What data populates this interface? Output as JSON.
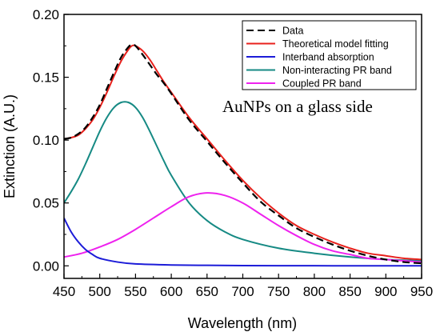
{
  "chart_data": {
    "type": "line",
    "title": "",
    "xlabel": "Wavelength (nm)",
    "ylabel": "Extinction (A.U.)",
    "xlim": [
      450,
      950
    ],
    "ylim": [
      -0.01,
      0.2
    ],
    "x_ticks": [
      450,
      500,
      550,
      600,
      650,
      700,
      750,
      800,
      850,
      900,
      950
    ],
    "y_ticks": [
      0.0,
      0.05,
      0.1,
      0.15,
      0.2
    ],
    "x_tick_labels": [
      "450",
      "500",
      "550",
      "600",
      "650",
      "700",
      "750",
      "800",
      "850",
      "900",
      "950"
    ],
    "y_tick_labels": [
      "0.00",
      "0.05",
      "0.10",
      "0.15",
      "0.20"
    ],
    "grid": false,
    "legend_position": "top-right",
    "annotation": {
      "text": "AuNPs on a glass side",
      "color": "#1a1ae6"
    },
    "series": [
      {
        "name": "Data",
        "color": "#000000",
        "style": "dashed",
        "x": [
          450,
          460,
          470,
          480,
          490,
          500,
          510,
          520,
          530,
          540,
          545,
          550,
          560,
          570,
          580,
          590,
          600,
          625,
          650,
          675,
          700,
          725,
          750,
          775,
          800,
          825,
          850,
          875,
          900,
          925,
          950
        ],
        "y": [
          0.101,
          0.102,
          0.105,
          0.11,
          0.118,
          0.128,
          0.141,
          0.154,
          0.166,
          0.174,
          0.176,
          0.175,
          0.168,
          0.16,
          0.152,
          0.145,
          0.137,
          0.116,
          0.099,
          0.082,
          0.066,
          0.051,
          0.04,
          0.03,
          0.023,
          0.017,
          0.012,
          0.008,
          0.005,
          0.003,
          0.002
        ]
      },
      {
        "name": "Theoretical model fitting",
        "color": "#e8211c",
        "style": "solid",
        "x": [
          450,
          460,
          470,
          480,
          490,
          500,
          510,
          520,
          530,
          540,
          545,
          550,
          560,
          570,
          580,
          590,
          600,
          625,
          650,
          675,
          700,
          725,
          750,
          775,
          800,
          825,
          850,
          875,
          900,
          925,
          950
        ],
        "y": [
          0.101,
          0.102,
          0.104,
          0.109,
          0.116,
          0.126,
          0.138,
          0.151,
          0.163,
          0.172,
          0.175,
          0.175,
          0.171,
          0.164,
          0.155,
          0.146,
          0.138,
          0.118,
          0.101,
          0.084,
          0.068,
          0.054,
          0.042,
          0.032,
          0.025,
          0.019,
          0.014,
          0.01,
          0.008,
          0.006,
          0.005
        ]
      },
      {
        "name": "Interband absorption",
        "color": "#1c1cd8",
        "style": "solid",
        "x": [
          450,
          460,
          470,
          480,
          490,
          500,
          525,
          550,
          600,
          650,
          700,
          750,
          800,
          850,
          900,
          950
        ],
        "y": [
          0.038,
          0.027,
          0.019,
          0.013,
          0.009,
          0.006,
          0.003,
          0.0015,
          0.0007,
          0.0004,
          0.0002,
          0.0001,
          0.0001,
          0.0,
          0.0,
          0.0
        ]
      },
      {
        "name": "Non-interacting PR band",
        "color": "#168a84",
        "style": "solid",
        "x": [
          450,
          460,
          470,
          480,
          490,
          500,
          510,
          520,
          530,
          540,
          550,
          560,
          570,
          580,
          590,
          600,
          625,
          650,
          675,
          700,
          750,
          800,
          850,
          900,
          950
        ],
        "y": [
          0.05,
          0.059,
          0.069,
          0.081,
          0.094,
          0.107,
          0.118,
          0.126,
          0.13,
          0.13,
          0.126,
          0.118,
          0.107,
          0.095,
          0.083,
          0.072,
          0.05,
          0.036,
          0.027,
          0.021,
          0.014,
          0.01,
          0.007,
          0.005,
          0.004
        ]
      },
      {
        "name": "Coupled PR band",
        "color": "#ee22ee",
        "style": "solid",
        "x": [
          450,
          475,
          500,
          525,
          550,
          575,
          600,
          625,
          650,
          675,
          700,
          725,
          750,
          775,
          800,
          825,
          850,
          875,
          900,
          925,
          950
        ],
        "y": [
          0.007,
          0.01,
          0.015,
          0.021,
          0.029,
          0.038,
          0.047,
          0.055,
          0.058,
          0.056,
          0.05,
          0.041,
          0.032,
          0.024,
          0.017,
          0.012,
          0.009,
          0.006,
          0.005,
          0.004,
          0.003
        ]
      }
    ]
  }
}
